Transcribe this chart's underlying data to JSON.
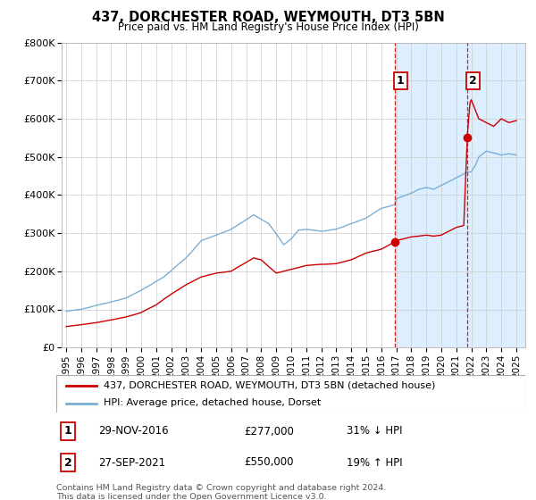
{
  "title": "437, DORCHESTER ROAD, WEYMOUTH, DT3 5BN",
  "subtitle": "Price paid vs. HM Land Registry's House Price Index (HPI)",
  "legend_line1": "437, DORCHESTER ROAD, WEYMOUTH, DT3 5BN (detached house)",
  "legend_line2": "HPI: Average price, detached house, Dorset",
  "annotation1_date": "29-NOV-2016",
  "annotation1_price": "£277,000",
  "annotation1_hpi": "31% ↓ HPI",
  "annotation2_date": "27-SEP-2021",
  "annotation2_price": "£550,000",
  "annotation2_hpi": "19% ↑ HPI",
  "footer": "Contains HM Land Registry data © Crown copyright and database right 2024.\nThis data is licensed under the Open Government Licence v3.0.",
  "hpi_color": "#7bafd4",
  "price_color": "#cc0000",
  "marker_color": "#cc0000",
  "vline_color": "#cc0000",
  "highlight_color": "#ddeeff",
  "background_color": "#ffffff",
  "grid_color": "#cccccc",
  "ylim": [
    0,
    800000
  ],
  "ytick_labels": [
    "£0",
    "£100K",
    "£200K",
    "£300K",
    "£400K",
    "£500K",
    "£600K",
    "£700K",
    "£800K"
  ],
  "ytick_values": [
    0,
    100000,
    200000,
    300000,
    400000,
    500000,
    600000,
    700000,
    800000
  ],
  "year_start": 1995,
  "year_end": 2025,
  "sale1_year": 2016.91,
  "sale1_price": 277000,
  "sale2_year": 2021.73,
  "sale2_price": 550000
}
